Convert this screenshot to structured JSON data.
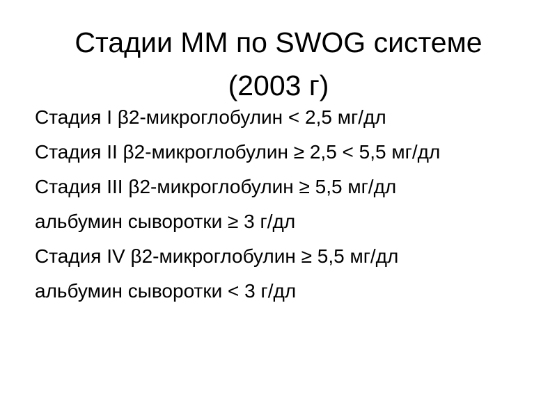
{
  "slide": {
    "title": {
      "line1": "Стадии ММ по SWOG системе",
      "line2": "(2003 г)"
    },
    "body": {
      "lines": [
        "Стадия I β2-микроглобулин < 2,5 мг/дл",
        "Стадия II β2-микроглобулин ≥ 2,5 < 5,5 мг/дл",
        "Стадия III β2-микроглобулин ≥ 5,5 мг/дл",
        "альбумин сыворотки ≥ 3 г/дл",
        "Стадия IV β2-микроглобулин ≥ 5,5 мг/дл",
        "альбумин сыворотки < 3 г/дл"
      ]
    },
    "colors": {
      "text": "#000000",
      "background": "#ffffff"
    }
  }
}
